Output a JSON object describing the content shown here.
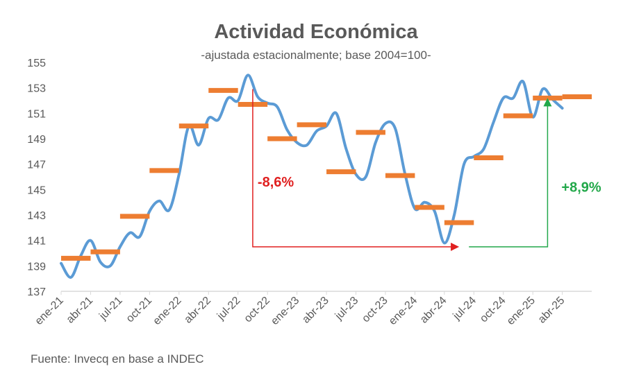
{
  "chart_data": {
    "type": "line",
    "title": "Actividad Económica",
    "subtitle": "-ajustada estacionalmente; base 2004=100-",
    "source": "Fuente: Invecq en base a INDEC",
    "ylim": [
      137,
      155
    ],
    "yticks": [
      137,
      139,
      141,
      143,
      145,
      147,
      149,
      151,
      153,
      155
    ],
    "xtick_labels": [
      "ene-21",
      "abr-21",
      "jul-21",
      "oct-21",
      "ene-22",
      "abr-22",
      "jul-22",
      "oct-22",
      "ene-23",
      "abr-23",
      "jul-23",
      "oct-23",
      "ene-24",
      "abr-24",
      "jul-24",
      "oct-24",
      "ene-25",
      "abr-25"
    ],
    "grid": false,
    "legend": "none",
    "colors": {
      "monthly": "#5b9bd5",
      "quarterly": "#ed7d31",
      "negative": "#e02020",
      "positive": "#22a84a",
      "axis": "#d9d9d9",
      "text": "#595959"
    },
    "series": [
      {
        "key": "monthly",
        "values": [
          139.2,
          138.1,
          139.8,
          141.0,
          139.3,
          139.0,
          140.5,
          141.6,
          141.3,
          143.3,
          144.1,
          143.4,
          146.2,
          150.0,
          148.5,
          150.6,
          150.5,
          152.2,
          152.0,
          154.0,
          152.3,
          151.8,
          151.5,
          149.7,
          148.7,
          148.5,
          149.6,
          150.0,
          151.0,
          148.2,
          146.2,
          146.0,
          148.7,
          150.2,
          149.8,
          146.2,
          143.5,
          144.0,
          143.3,
          140.8,
          143.0,
          147.0,
          147.6,
          148.2,
          150.3,
          152.2,
          152.2,
          153.5,
          150.7,
          152.9,
          152.1,
          151.4
        ]
      },
      {
        "key": "quarterly",
        "segments": [
          {
            "start": 0,
            "end": 3,
            "value": 139.6
          },
          {
            "start": 3,
            "end": 6,
            "value": 140.1
          },
          {
            "start": 6,
            "end": 9,
            "value": 142.9
          },
          {
            "start": 9,
            "end": 12,
            "value": 146.5
          },
          {
            "start": 12,
            "end": 15,
            "value": 150.0
          },
          {
            "start": 15,
            "end": 18,
            "value": 152.8
          },
          {
            "start": 18,
            "end": 21,
            "value": 151.7
          },
          {
            "start": 21,
            "end": 24,
            "value": 149.0
          },
          {
            "start": 24,
            "end": 27,
            "value": 150.1
          },
          {
            "start": 27,
            "end": 30,
            "value": 146.4
          },
          {
            "start": 30,
            "end": 33,
            "value": 149.5
          },
          {
            "start": 33,
            "end": 36,
            "value": 146.1
          },
          {
            "start": 36,
            "end": 39,
            "value": 143.6
          },
          {
            "start": 39,
            "end": 42,
            "value": 142.4
          },
          {
            "start": 42,
            "end": 45,
            "value": 147.5
          },
          {
            "start": 45,
            "end": 48,
            "value": 150.8
          },
          {
            "start": 48,
            "end": 51,
            "value": 152.2
          },
          {
            "start": 51,
            "end": 54,
            "value": 152.3
          }
        ]
      }
    ],
    "annotations": [
      {
        "text": "-8,6%",
        "from_month": 19.5,
        "from_value": 152.9,
        "to_month": 40.5,
        "to_value": 140.5
      },
      {
        "text": "+8,9%",
        "from_month": 41.5,
        "from_value": 140.5,
        "to_month": 49.5,
        "to_value": 152.2
      }
    ]
  }
}
